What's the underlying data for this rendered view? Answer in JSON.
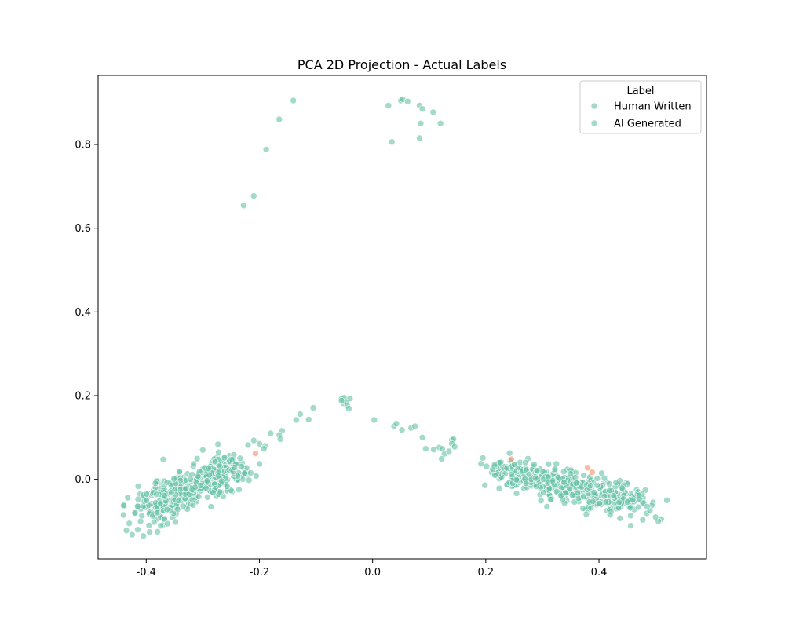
{
  "chart_data": {
    "type": "scatter",
    "title": "PCA 2D Projection - Actual Labels",
    "xlabel": "",
    "ylabel": "",
    "xlim": [
      -0.485,
      0.59
    ],
    "ylim": [
      -0.19,
      0.965
    ],
    "xticks": [
      -0.4,
      -0.2,
      0.0,
      0.2,
      0.4
    ],
    "yticks": [
      0.0,
      0.2,
      0.4,
      0.6,
      0.8
    ],
    "xtick_labels": [
      "-0.4",
      "-0.2",
      "0.0",
      "0.2",
      "0.4"
    ],
    "ytick_labels": [
      "0.0",
      "0.2",
      "0.4",
      "0.6",
      "0.8"
    ],
    "grid": false,
    "legend": {
      "title": "Label",
      "placement": "top-right",
      "entries": [
        "Human Written",
        "AI Generated"
      ]
    },
    "marker_opacity": 0.6,
    "series": [
      {
        "name": "Human Written",
        "color": "#66c2a5",
        "points": [
          [
            -0.14,
            0.905
          ],
          [
            -0.165,
            0.86
          ],
          [
            -0.188,
            0.788
          ],
          [
            -0.21,
            0.677
          ],
          [
            -0.228,
            0.654
          ],
          [
            0.028,
            0.893
          ],
          [
            0.05,
            0.905
          ],
          [
            0.053,
            0.908
          ],
          [
            0.062,
            0.903
          ],
          [
            0.083,
            0.893
          ],
          [
            0.088,
            0.885
          ],
          [
            0.107,
            0.877
          ],
          [
            0.12,
            0.85
          ],
          [
            0.085,
            0.85
          ],
          [
            0.034,
            0.806
          ],
          [
            0.083,
            0.815
          ],
          [
            -0.055,
            0.192
          ],
          [
            -0.05,
            0.195
          ],
          [
            -0.04,
            0.193
          ],
          [
            -0.052,
            0.182
          ],
          [
            -0.047,
            0.185
          ],
          [
            -0.045,
            0.176
          ],
          [
            -0.042,
            0.169
          ],
          [
            -0.055,
            0.188
          ],
          [
            -0.105,
            0.171
          ],
          [
            -0.113,
            0.143
          ],
          [
            -0.128,
            0.156
          ],
          [
            -0.135,
            0.142
          ],
          [
            -0.16,
            0.116
          ],
          [
            -0.165,
            0.106
          ],
          [
            -0.163,
            0.096
          ],
          [
            -0.18,
            0.11
          ],
          [
            -0.19,
            0.08
          ],
          [
            -0.2,
            0.085
          ],
          [
            -0.192,
            0.073
          ],
          [
            -0.21,
            0.093
          ],
          [
            -0.22,
            0.082
          ],
          [
            -0.2,
            0.037
          ],
          [
            0.003,
            0.142
          ],
          [
            0.038,
            0.127
          ],
          [
            0.042,
            0.133
          ],
          [
            0.052,
            0.118
          ],
          [
            0.068,
            0.123
          ],
          [
            0.075,
            0.127
          ],
          [
            0.088,
            0.1
          ],
          [
            0.094,
            0.073
          ],
          [
            0.108,
            0.071
          ],
          [
            0.118,
            0.076
          ],
          [
            0.123,
            0.073
          ],
          [
            0.127,
            0.061
          ],
          [
            0.122,
            0.049
          ],
          [
            0.135,
            0.067
          ],
          [
            0.14,
            0.094
          ],
          [
            0.143,
            0.096
          ],
          [
            0.14,
            0.085
          ],
          [
            0.145,
            0.078
          ],
          [
            -0.44,
            -0.062
          ],
          [
            -0.44,
            -0.085
          ],
          [
            -0.435,
            -0.122
          ],
          [
            -0.43,
            -0.105
          ],
          [
            -0.425,
            -0.132
          ],
          [
            -0.42,
            -0.08
          ],
          [
            -0.415,
            -0.12
          ],
          [
            -0.41,
            -0.1
          ],
          [
            -0.405,
            -0.135
          ],
          [
            -0.4,
            -0.05
          ],
          [
            -0.395,
            -0.11
          ],
          [
            -0.38,
            -0.125
          ],
          [
            0.52,
            -0.05
          ],
          [
            0.51,
            -0.095
          ],
          [
            0.505,
            -0.1
          ],
          [
            0.5,
            -0.09
          ],
          [
            0.49,
            -0.075
          ],
          [
            0.485,
            -0.065
          ]
        ]
      },
      {
        "name": "AI Generated",
        "color": "#fc8d62",
        "points": [
          [
            -0.207,
            0.062
          ],
          [
            0.388,
            0.017
          ],
          [
            0.245,
            0.048
          ],
          [
            0.38,
            0.028
          ]
        ]
      }
    ],
    "clusters": [
      {
        "series": 0,
        "count": 380,
        "center": [
          -0.32,
          -0.02
        ],
        "direction": [
          0.17,
          0.1
        ],
        "spread_along": 1.0,
        "spread_across": 0.022
      },
      {
        "series": 0,
        "count": 420,
        "center": [
          0.34,
          -0.015
        ],
        "direction": [
          0.24,
          -0.07
        ],
        "spread_along": 1.0,
        "spread_across": 0.02
      }
    ]
  }
}
